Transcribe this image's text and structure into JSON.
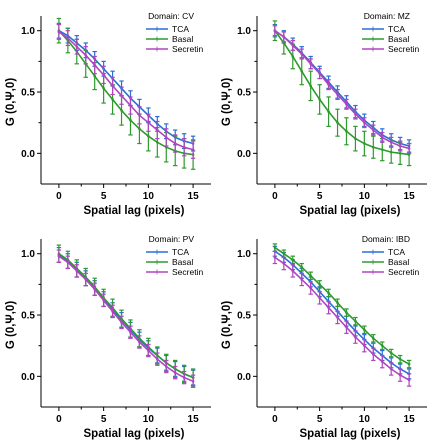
{
  "chart_data": [
    {
      "type": "line",
      "title": "",
      "domain_label": "Domain: CV",
      "xlabel": "Spatial lag (pixels)",
      "ylabel": "G (0,Ψ,0)",
      "xlim": [
        -2,
        17
      ],
      "ylim": [
        -0.25,
        1.12
      ],
      "xticks": [
        "0",
        "5",
        "10",
        "15"
      ],
      "yticks": [
        "0.0",
        "0.5",
        "1.0"
      ],
      "x": [
        0,
        1,
        2,
        3,
        4,
        5,
        6,
        7,
        8,
        9,
        10,
        11,
        12,
        13,
        14,
        15
      ],
      "series": [
        {
          "name": "TCA",
          "color": "#2a6fd6",
          "values": [
            1.0,
            0.96,
            0.9,
            0.84,
            0.77,
            0.69,
            0.61,
            0.53,
            0.45,
            0.38,
            0.31,
            0.24,
            0.18,
            0.13,
            0.1,
            0.08
          ],
          "err": [
            0.06,
            0.06,
            0.06,
            0.06,
            0.06,
            0.06,
            0.06,
            0.06,
            0.06,
            0.06,
            0.06,
            0.06,
            0.06,
            0.06,
            0.06,
            0.06
          ]
        },
        {
          "name": "Basal",
          "color": "#2e9a2e",
          "values": [
            1.0,
            0.92,
            0.83,
            0.73,
            0.63,
            0.53,
            0.44,
            0.35,
            0.27,
            0.2,
            0.14,
            0.09,
            0.05,
            0.02,
            0.0,
            -0.01
          ],
          "err": [
            0.1,
            0.1,
            0.1,
            0.11,
            0.11,
            0.12,
            0.12,
            0.12,
            0.12,
            0.12,
            0.12,
            0.12,
            0.12,
            0.12,
            0.12,
            0.12
          ]
        },
        {
          "name": "Secretin",
          "color": "#b045c0",
          "values": [
            0.99,
            0.94,
            0.87,
            0.8,
            0.72,
            0.64,
            0.55,
            0.47,
            0.39,
            0.31,
            0.25,
            0.19,
            0.13,
            0.08,
            0.05,
            0.03
          ],
          "err": [
            0.06,
            0.06,
            0.06,
            0.07,
            0.07,
            0.07,
            0.07,
            0.07,
            0.07,
            0.07,
            0.07,
            0.07,
            0.07,
            0.07,
            0.07,
            0.07
          ]
        }
      ]
    },
    {
      "type": "line",
      "title": "",
      "domain_label": "Domain: MZ",
      "xlabel": "Spatial lag (pixels)",
      "ylabel": "G (0,Ψ,0)",
      "xlim": [
        -2,
        17
      ],
      "ylim": [
        -0.25,
        1.12
      ],
      "xticks": [
        "0",
        "5",
        "10",
        "15"
      ],
      "yticks": [
        "0.0",
        "0.5",
        "1.0"
      ],
      "x": [
        0,
        1,
        2,
        3,
        4,
        5,
        6,
        7,
        8,
        9,
        10,
        11,
        12,
        13,
        14,
        15
      ],
      "series": [
        {
          "name": "TCA",
          "color": "#2a6fd6",
          "values": [
            1.0,
            0.95,
            0.89,
            0.82,
            0.74,
            0.66,
            0.58,
            0.5,
            0.42,
            0.34,
            0.27,
            0.21,
            0.15,
            0.11,
            0.08,
            0.06
          ],
          "err": [
            0.05,
            0.05,
            0.05,
            0.05,
            0.05,
            0.05,
            0.05,
            0.05,
            0.05,
            0.05,
            0.05,
            0.05,
            0.05,
            0.05,
            0.05,
            0.05
          ]
        },
        {
          "name": "Basal",
          "color": "#2e9a2e",
          "values": [
            1.0,
            0.9,
            0.79,
            0.67,
            0.55,
            0.44,
            0.34,
            0.25,
            0.18,
            0.12,
            0.08,
            0.05,
            0.03,
            0.01,
            0.0,
            -0.01
          ],
          "err": [
            0.08,
            0.09,
            0.1,
            0.11,
            0.12,
            0.12,
            0.12,
            0.11,
            0.11,
            0.1,
            0.1,
            0.09,
            0.09,
            0.09,
            0.09,
            0.09
          ]
        },
        {
          "name": "Secretin",
          "color": "#b045c0",
          "values": [
            1.0,
            0.95,
            0.88,
            0.81,
            0.73,
            0.65,
            0.56,
            0.48,
            0.4,
            0.32,
            0.25,
            0.19,
            0.13,
            0.09,
            0.06,
            0.04
          ],
          "err": [
            0.04,
            0.04,
            0.04,
            0.04,
            0.04,
            0.04,
            0.04,
            0.04,
            0.04,
            0.04,
            0.04,
            0.04,
            0.04,
            0.04,
            0.04,
            0.04
          ]
        }
      ]
    },
    {
      "type": "line",
      "title": "",
      "domain_label": "Domain: PV",
      "xlabel": "Spatial lag (pixels)",
      "ylabel": "G (0,Ψ,0)",
      "xlim": [
        -2,
        17
      ],
      "ylim": [
        -0.25,
        1.12
      ],
      "xticks": [
        "0",
        "5",
        "10",
        "15"
      ],
      "yticks": [
        "0.0",
        "0.5",
        "1.0"
      ],
      "x": [
        0,
        1,
        2,
        3,
        4,
        5,
        6,
        7,
        8,
        9,
        10,
        11,
        12,
        13,
        14,
        15
      ],
      "series": [
        {
          "name": "TCA",
          "color": "#2a6fd6",
          "values": [
            0.99,
            0.94,
            0.87,
            0.8,
            0.72,
            0.63,
            0.54,
            0.46,
            0.38,
            0.3,
            0.23,
            0.17,
            0.11,
            0.06,
            0.02,
            -0.01
          ],
          "err": [
            0.06,
            0.06,
            0.06,
            0.06,
            0.06,
            0.06,
            0.06,
            0.06,
            0.06,
            0.06,
            0.06,
            0.06,
            0.06,
            0.06,
            0.06,
            0.06
          ]
        },
        {
          "name": "Basal",
          "color": "#2e9a2e",
          "values": [
            1.0,
            0.95,
            0.88,
            0.81,
            0.73,
            0.64,
            0.56,
            0.47,
            0.39,
            0.31,
            0.24,
            0.17,
            0.11,
            0.06,
            0.02,
            -0.01
          ],
          "err": [
            0.07,
            0.07,
            0.07,
            0.07,
            0.07,
            0.07,
            0.07,
            0.07,
            0.07,
            0.07,
            0.07,
            0.07,
            0.07,
            0.07,
            0.07,
            0.07
          ]
        },
        {
          "name": "Secretin",
          "color": "#b045c0",
          "values": [
            0.98,
            0.93,
            0.86,
            0.79,
            0.71,
            0.62,
            0.53,
            0.44,
            0.36,
            0.28,
            0.21,
            0.14,
            0.08,
            0.03,
            -0.01,
            -0.04
          ],
          "err": [
            0.05,
            0.05,
            0.05,
            0.05,
            0.05,
            0.05,
            0.05,
            0.05,
            0.05,
            0.05,
            0.05,
            0.05,
            0.05,
            0.05,
            0.05,
            0.05
          ]
        }
      ]
    },
    {
      "type": "line",
      "title": "",
      "domain_label": "Domain: IBD",
      "xlabel": "Spatial lag (pixels)",
      "ylabel": "G (0,Ψ,0)",
      "xlim": [
        -2,
        17
      ],
      "ylim": [
        -0.25,
        1.12
      ],
      "xticks": [
        "0",
        "5",
        "10",
        "15"
      ],
      "yticks": [
        "0.0",
        "0.5",
        "1.0"
      ],
      "x": [
        0,
        1,
        2,
        3,
        4,
        5,
        6,
        7,
        8,
        9,
        10,
        11,
        12,
        13,
        14,
        15
      ],
      "series": [
        {
          "name": "TCA",
          "color": "#2a6fd6",
          "values": [
            1.02,
            0.97,
            0.91,
            0.84,
            0.77,
            0.69,
            0.61,
            0.53,
            0.45,
            0.37,
            0.3,
            0.23,
            0.17,
            0.11,
            0.06,
            0.02
          ],
          "err": [
            0.04,
            0.04,
            0.04,
            0.04,
            0.04,
            0.04,
            0.04,
            0.04,
            0.04,
            0.04,
            0.04,
            0.04,
            0.04,
            0.04,
            0.04,
            0.04
          ]
        },
        {
          "name": "Basal",
          "color": "#2e9a2e",
          "values": [
            1.05,
            1.0,
            0.95,
            0.89,
            0.82,
            0.75,
            0.68,
            0.6,
            0.52,
            0.45,
            0.38,
            0.31,
            0.25,
            0.19,
            0.14,
            0.1
          ],
          "err": [
            0.03,
            0.03,
            0.03,
            0.03,
            0.03,
            0.03,
            0.03,
            0.03,
            0.03,
            0.03,
            0.03,
            0.03,
            0.03,
            0.03,
            0.03,
            0.03
          ]
        },
        {
          "name": "Secretin",
          "color": "#b045c0",
          "values": [
            0.97,
            0.92,
            0.86,
            0.79,
            0.72,
            0.64,
            0.56,
            0.48,
            0.4,
            0.32,
            0.25,
            0.18,
            0.12,
            0.06,
            0.01,
            -0.03
          ],
          "err": [
            0.05,
            0.05,
            0.05,
            0.05,
            0.05,
            0.05,
            0.05,
            0.05,
            0.05,
            0.05,
            0.05,
            0.05,
            0.05,
            0.05,
            0.05,
            0.05
          ]
        }
      ]
    }
  ]
}
